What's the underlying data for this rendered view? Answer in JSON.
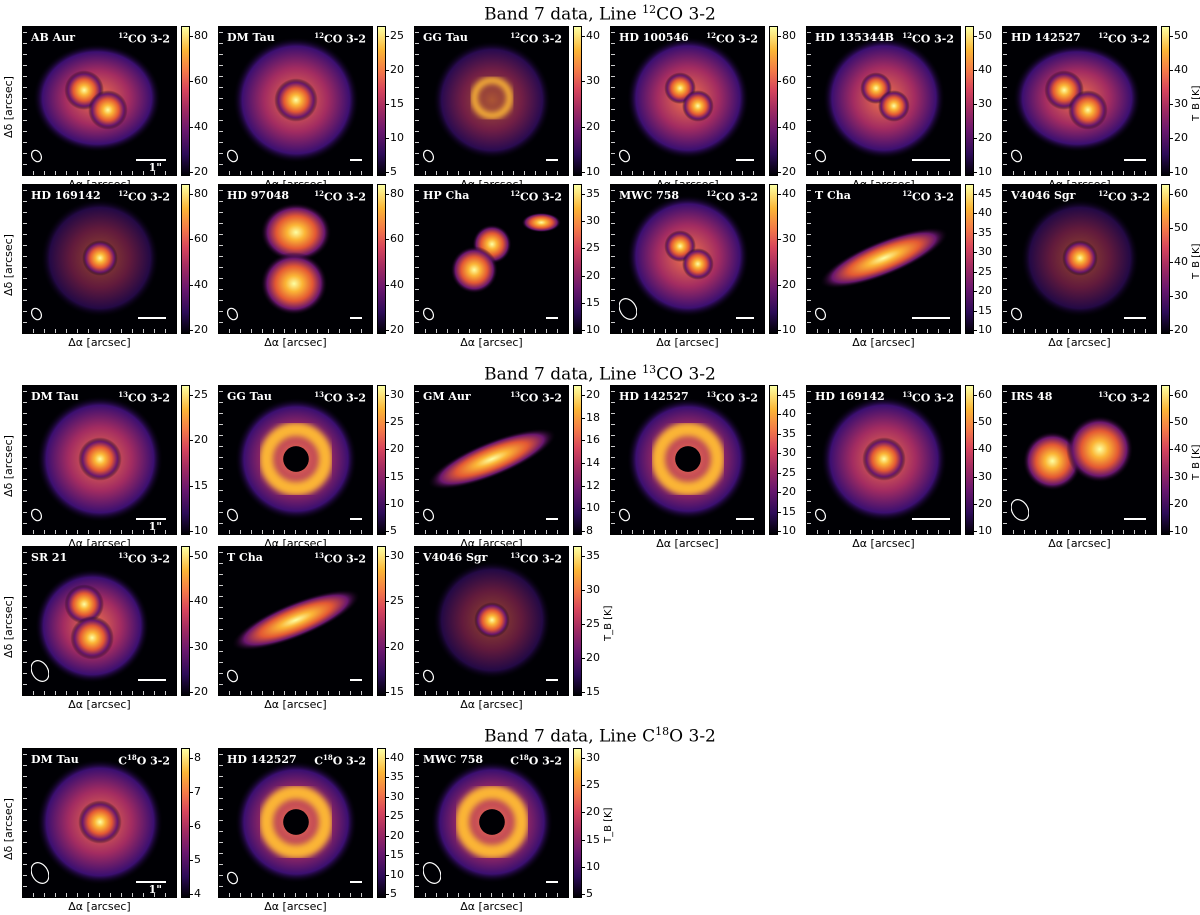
{
  "sections": [
    {
      "title_prefix": "Band 7 data, Line ",
      "title_sup": "12",
      "title_suffix": "CO 3-2",
      "rows": [
        [
          {
            "source": "AB Aur",
            "line_sup": "12",
            "line": "CO 3-2",
            "ticks": [
              "80",
              "60",
              "40",
              "20"
            ],
            "scale": "1\"",
            "beam_large": false,
            "morph": "spiral"
          },
          {
            "source": "DM Tau",
            "line_sup": "12",
            "line": "CO 3-2",
            "ticks": [
              "25",
              "20",
              "15",
              "10",
              "5"
            ],
            "scale": "",
            "beam_large": false,
            "morph": "round"
          },
          {
            "source": "GG Tau",
            "line_sup": "12",
            "line": "CO 3-2",
            "ticks": [
              "40",
              "30",
              "20",
              "10"
            ],
            "scale": "",
            "beam_large": false,
            "morph": "ring-small"
          },
          {
            "source": "HD 100546",
            "line_sup": "12",
            "line": "CO 3-2",
            "ticks": [
              "80",
              "60",
              "40",
              "20"
            ],
            "scale": "",
            "beam_large": false,
            "morph": "blob"
          },
          {
            "source": "HD 135344B",
            "line_sup": "12",
            "line": "CO 3-2",
            "ticks": [
              "50",
              "40",
              "30",
              "20",
              "10"
            ],
            "scale": "",
            "beam_large": false,
            "morph": "blob"
          },
          {
            "source": "HD 142527",
            "line_sup": "12",
            "line": "CO 3-2",
            "ticks": [
              "50",
              "40",
              "30",
              "20",
              "10"
            ],
            "scale": "",
            "beam_large": false,
            "morph": "spiral",
            "unit": "T_B [K]"
          }
        ],
        [
          {
            "source": "HD 169142",
            "line_sup": "12",
            "line": "CO 3-2",
            "ticks": [
              "80",
              "60",
              "40",
              "20"
            ],
            "scale": "",
            "beam_large": false,
            "morph": "compact"
          },
          {
            "source": "HD 97048",
            "line_sup": "12",
            "line": "CO 3-2",
            "ticks": [
              "80",
              "60",
              "40",
              "20"
            ],
            "scale": "",
            "beam_large": false,
            "morph": "butterfly"
          },
          {
            "source": "HP Cha",
            "line_sup": "12",
            "line": "CO 3-2",
            "ticks": [
              "35",
              "30",
              "25",
              "20",
              "15",
              "10"
            ],
            "scale": "",
            "beam_large": false,
            "morph": "clumps"
          },
          {
            "source": "MWC 758",
            "line_sup": "12",
            "line": "CO 3-2",
            "ticks": [
              "40",
              "30",
              "20",
              "10"
            ],
            "scale": "",
            "beam_large": true,
            "morph": "blob"
          },
          {
            "source": "T Cha",
            "line_sup": "12",
            "line": "CO 3-2",
            "ticks": [
              "45",
              "40",
              "35",
              "30",
              "25",
              "20",
              "15",
              "10"
            ],
            "scale": "",
            "beam_large": false,
            "morph": "edge"
          },
          {
            "source": "V4046 Sgr",
            "line_sup": "12",
            "line": "CO 3-2",
            "ticks": [
              "60",
              "50",
              "40",
              "30",
              "20"
            ],
            "scale": "",
            "beam_large": false,
            "morph": "compact",
            "unit": "T_B [K]"
          }
        ]
      ]
    },
    {
      "title_prefix": "Band 7 data, Line ",
      "title_sup": "13",
      "title_suffix": "CO 3-2",
      "rows": [
        [
          {
            "source": "DM Tau",
            "line_sup": "13",
            "line": "CO 3-2",
            "ticks": [
              "25",
              "20",
              "15",
              "10"
            ],
            "scale": "1\"",
            "beam_large": false,
            "morph": "round"
          },
          {
            "source": "GG Tau",
            "line_sup": "13",
            "line": "CO 3-2",
            "ticks": [
              "30",
              "25",
              "20",
              "15",
              "10",
              "5"
            ],
            "scale": "",
            "beam_large": false,
            "morph": "ring"
          },
          {
            "source": "GM Aur",
            "line_sup": "13",
            "line": "CO 3-2",
            "ticks": [
              "20",
              "18",
              "16",
              "14",
              "12",
              "10",
              "8"
            ],
            "scale": "",
            "beam_large": false,
            "morph": "edge"
          },
          {
            "source": "HD 142527",
            "line_sup": "13",
            "line": "CO 3-2",
            "ticks": [
              "45",
              "40",
              "35",
              "30",
              "25",
              "20",
              "15",
              "10"
            ],
            "scale": "",
            "beam_large": false,
            "morph": "ring"
          },
          {
            "source": "HD 169142",
            "line_sup": "13",
            "line": "CO 3-2",
            "ticks": [
              "60",
              "50",
              "40",
              "30",
              "20",
              "10"
            ],
            "scale": "",
            "beam_large": false,
            "morph": "round"
          },
          {
            "source": "IRS 48",
            "line_sup": "13",
            "line": "CO 3-2",
            "ticks": [
              "60",
              "50",
              "40",
              "30",
              "20",
              "10"
            ],
            "scale": "",
            "beam_large": true,
            "morph": "twolobe",
            "unit": "T_B [K]"
          }
        ],
        [
          {
            "source": "SR 21",
            "line_sup": "13",
            "line": "CO 3-2",
            "ticks": [
              "50",
              "40",
              "30",
              "20"
            ],
            "scale": "",
            "beam_large": true,
            "morph": "blob2"
          },
          {
            "source": "T Cha",
            "line_sup": "13",
            "line": "CO 3-2",
            "ticks": [
              "30",
              "25",
              "20",
              "15"
            ],
            "scale": "",
            "beam_large": false,
            "morph": "edge"
          },
          {
            "source": "V4046 Sgr",
            "line_sup": "13",
            "line": "CO 3-2",
            "ticks": [
              "35",
              "30",
              "25",
              "20",
              "15"
            ],
            "scale": "",
            "beam_large": false,
            "morph": "compact",
            "unit": "T_B [K]"
          }
        ]
      ]
    },
    {
      "title_prefix": "Band 7 data, Line C",
      "title_sup": "18",
      "title_suffix": "O 3-2",
      "rows": [
        [
          {
            "source": "DM Tau",
            "line_sup": "18",
            "line_prefix": "C",
            "line": "O 3-2",
            "ticks": [
              "8",
              "7",
              "6",
              "5",
              "4"
            ],
            "scale": "1\"",
            "beam_large": true,
            "morph": "round"
          },
          {
            "source": "HD 142527",
            "line_sup": "18",
            "line_prefix": "C",
            "line": "O 3-2",
            "ticks": [
              "40",
              "35",
              "30",
              "25",
              "20",
              "15",
              "10",
              "5"
            ],
            "scale": "",
            "beam_large": false,
            "morph": "ring"
          },
          {
            "source": "MWC 758",
            "line_sup": "18",
            "line_prefix": "C",
            "line": "O 3-2",
            "ticks": [
              "30",
              "25",
              "20",
              "15",
              "10",
              "5"
            ],
            "scale": "",
            "beam_large": true,
            "morph": "ring",
            "unit": "T_B [K]"
          }
        ]
      ]
    }
  ],
  "axis": {
    "xlabel": "Δα [arcsec]",
    "ylabel": "Δδ [arcsec]"
  }
}
